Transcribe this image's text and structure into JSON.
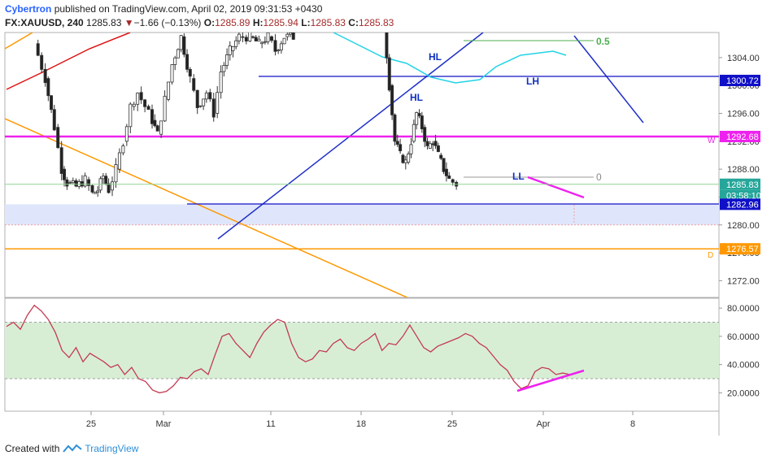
{
  "header": {
    "author": "Cybertron",
    "published": "published on TradingView.com, April 02, 2019 09:31:53 +0430",
    "symbol": "FX:XAUUSD, 240",
    "last": "1285.83",
    "change_arrow": "▼",
    "change": "−1.66 (−0.13%)",
    "o_label": "O:",
    "o_value": "1285.89",
    "h_label": "H:",
    "h_value": "1285.94",
    "l_label": "L:",
    "l_value": "1285.83",
    "c_label": "C:",
    "c_value": "1285.83"
  },
  "footer": {
    "text": "Created with",
    "brand": "TradingView"
  },
  "chart_data": [
    {
      "type": "candlestick",
      "y_ticks": [
        1272,
        1276,
        1280,
        1284,
        1288,
        1292,
        1296,
        1300,
        1304
      ],
      "y_tick_labels": [
        "1272.00",
        "1276.00",
        "1280.00",
        "1284.00",
        "1288.00",
        "1292.00",
        "1296.00",
        "1300.00",
        "1304.00"
      ],
      "ylim": [
        1269.6,
        1307.6
      ],
      "x_ticks": [
        "25",
        "Mar",
        "11",
        "18",
        "25",
        "Apr",
        "8"
      ],
      "price_labels": [
        {
          "text": "1300.72",
          "value": 1300.72,
          "color": "#1010c8"
        },
        {
          "text": "1292.68",
          "value": 1292.68,
          "color": "#ee22ee"
        },
        {
          "text": "1285.83",
          "value": 1285.83,
          "color": "#26a69a"
        },
        {
          "text": "03:58:10",
          "value": 1284.2,
          "color": "#26a69a"
        },
        {
          "text": "1282.96",
          "value": 1282.96,
          "color": "#1010c8"
        },
        {
          "text": "1276.57",
          "value": 1276.57,
          "color": "#ff9800"
        }
      ],
      "horizontal_lines": [
        {
          "value": 1300.72,
          "color": "#1010c8"
        },
        {
          "value": 1292.68,
          "color": "#ee22ee"
        },
        {
          "value": 1276.57,
          "color": "#ff9800"
        }
      ],
      "zone": {
        "from": 1280.0,
        "to": 1282.96,
        "color": "#dfe6fb"
      },
      "annotations": [
        {
          "text": "HL",
          "color": "#1030c0"
        },
        {
          "text": "HL",
          "color": "#1030c0"
        },
        {
          "text": "LH",
          "color": "#1030c0"
        },
        {
          "text": "LL",
          "color": "#1030c0"
        },
        {
          "text": "0.5",
          "color": "#4caf50"
        },
        {
          "text": "0",
          "color": "#888888"
        },
        {
          "text": "W",
          "color": "#ee22ee"
        },
        {
          "text": "D",
          "color": "#ff9800"
        }
      ],
      "price_path": [
        [
          1,
          1306
        ],
        [
          1.6,
          1301
        ],
        [
          2.1,
          1294
        ],
        [
          2.5,
          1288
        ],
        [
          2.8,
          1286
        ],
        [
          3.3,
          1285.5
        ],
        [
          3.8,
          1286.5
        ],
        [
          4.2,
          1284.5
        ],
        [
          4.5,
          1285
        ],
        [
          4.8,
          1287
        ],
        [
          5.1,
          1285
        ],
        [
          5.5,
          1288
        ],
        [
          5.9,
          1292
        ],
        [
          6.3,
          1297
        ],
        [
          6.7,
          1299
        ],
        [
          7.1,
          1297
        ],
        [
          7.5,
          1295
        ],
        [
          7.8,
          1293
        ],
        [
          8.2,
          1298
        ],
        [
          8.6,
          1303
        ],
        [
          9.1,
          1307
        ],
        [
          9.6,
          1301
        ],
        [
          10.0,
          1297
        ],
        [
          10.5,
          1299
        ],
        [
          10.9,
          1296
        ],
        [
          11.3,
          1302
        ],
        [
          11.8,
          1305
        ],
        [
          12.3,
          1307
        ],
        [
          12.9,
          1307
        ],
        [
          13.4,
          1306
        ],
        [
          13.9,
          1307
        ],
        [
          14.3,
          1305
        ],
        [
          14.8,
          1307
        ],
        [
          15.3,
          1307
        ],
        [
          20.3,
          1309
        ],
        [
          20.6,
          1300
        ],
        [
          20.9,
          1292
        ],
        [
          21.2,
          1290
        ],
        [
          21.5,
          1289
        ],
        [
          21.8,
          1292
        ],
        [
          22.1,
          1296
        ],
        [
          22.4,
          1294
        ],
        [
          22.7,
          1291
        ],
        [
          23.0,
          1292
        ],
        [
          23.3,
          1290
        ],
        [
          23.6,
          1288
        ],
        [
          23.9,
          1286.5
        ],
        [
          24.3,
          1285.83
        ]
      ]
    },
    {
      "type": "line",
      "name": "RSI",
      "y_ticks": [
        20,
        40,
        60,
        80
      ],
      "y_tick_labels": [
        "20.0000",
        "40.0000",
        "60.0000",
        "80.0000"
      ],
      "ylim": [
        7,
        87
      ],
      "band": [
        30,
        70
      ],
      "values": [
        [
          0,
          67
        ],
        [
          0.3,
          70
        ],
        [
          0.6,
          65
        ],
        [
          0.9,
          75
        ],
        [
          1.2,
          82
        ],
        [
          1.5,
          78
        ],
        [
          1.8,
          72
        ],
        [
          2.1,
          63
        ],
        [
          2.4,
          50
        ],
        [
          2.7,
          45
        ],
        [
          3.0,
          52
        ],
        [
          3.3,
          42
        ],
        [
          3.6,
          48
        ],
        [
          3.9,
          45
        ],
        [
          4.2,
          42
        ],
        [
          4.5,
          38
        ],
        [
          4.8,
          40
        ],
        [
          5.1,
          33
        ],
        [
          5.4,
          38
        ],
        [
          5.7,
          30
        ],
        [
          6.0,
          28
        ],
        [
          6.3,
          22
        ],
        [
          6.6,
          20
        ],
        [
          6.9,
          21
        ],
        [
          7.2,
          25
        ],
        [
          7.5,
          31
        ],
        [
          7.8,
          30
        ],
        [
          8.1,
          35
        ],
        [
          8.4,
          37
        ],
        [
          8.7,
          33
        ],
        [
          9.0,
          47
        ],
        [
          9.3,
          60
        ],
        [
          9.6,
          62
        ],
        [
          9.9,
          55
        ],
        [
          10.2,
          50
        ],
        [
          10.5,
          45
        ],
        [
          10.8,
          55
        ],
        [
          11.1,
          63
        ],
        [
          11.4,
          68
        ],
        [
          11.7,
          72
        ],
        [
          12.0,
          70
        ],
        [
          12.3,
          55
        ],
        [
          12.6,
          45
        ],
        [
          12.9,
          42
        ],
        [
          13.2,
          44
        ],
        [
          13.5,
          50
        ],
        [
          13.8,
          49
        ],
        [
          14.1,
          55
        ],
        [
          14.4,
          58
        ],
        [
          14.7,
          52
        ],
        [
          15.0,
          50
        ],
        [
          15.3,
          55
        ],
        [
          15.6,
          58
        ],
        [
          15.9,
          62
        ],
        [
          16.2,
          50
        ],
        [
          16.5,
          55
        ],
        [
          16.8,
          54
        ],
        [
          17.1,
          60
        ],
        [
          17.4,
          68
        ],
        [
          17.7,
          60
        ],
        [
          18.0,
          52
        ],
        [
          18.3,
          49
        ],
        [
          18.6,
          53
        ],
        [
          18.9,
          55
        ],
        [
          19.2,
          57
        ],
        [
          19.5,
          59
        ],
        [
          19.8,
          62
        ],
        [
          20.1,
          60
        ],
        [
          20.4,
          55
        ],
        [
          20.7,
          52
        ],
        [
          21.0,
          46
        ],
        [
          21.3,
          40
        ],
        [
          21.6,
          36
        ],
        [
          21.9,
          28
        ],
        [
          22.2,
          23
        ],
        [
          22.5,
          25
        ],
        [
          22.8,
          35
        ],
        [
          23.1,
          38
        ],
        [
          23.4,
          37
        ],
        [
          23.7,
          33
        ],
        [
          24.0,
          34
        ],
        [
          24.3,
          33
        ]
      ]
    }
  ]
}
